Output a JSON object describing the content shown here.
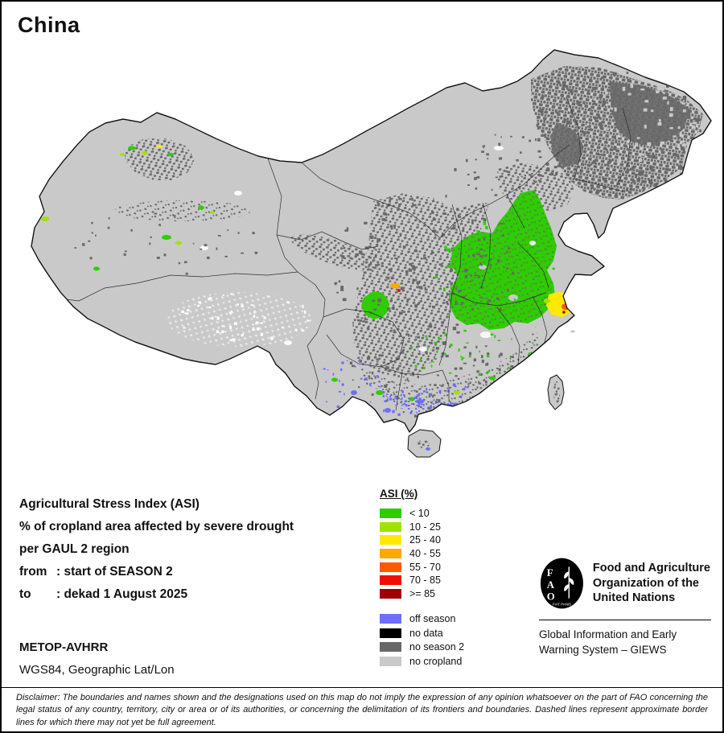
{
  "page": {
    "title": "China"
  },
  "info": {
    "heading": "Agricultural Stress Index (ASI)",
    "subtitle1": "% of cropland area affected by severe drought",
    "subtitle2": "per GAUL 2 region",
    "from_label": "from",
    "from_value": ": start of SEASON 2",
    "to_label": "to",
    "to_value": ": dekad 1 August 2025",
    "sensor": "METOP-AVHRR",
    "projection": "WGS84, Geographic Lat/Lon"
  },
  "legend": {
    "title": "ASI (%)",
    "asi_classes": [
      {
        "label": "< 10",
        "color": "#2fcc00"
      },
      {
        "label": "10 - 25",
        "color": "#a0e300"
      },
      {
        "label": "25 - 40",
        "color": "#ffe900"
      },
      {
        "label": "40 - 55",
        "color": "#ffa800"
      },
      {
        "label": "55 - 70",
        "color": "#ff5a00"
      },
      {
        "label": "70 - 85",
        "color": "#f01000"
      },
      {
        "label": ">= 85",
        "color": "#9e0000"
      }
    ],
    "other_classes": [
      {
        "label": "off season",
        "color": "#6e6eff"
      },
      {
        "label": "no data",
        "color": "#000000"
      },
      {
        "label": "no season 2",
        "color": "#686868"
      },
      {
        "label": "no cropland",
        "color": "#c9c9c9"
      }
    ]
  },
  "fao": {
    "logo_letters": [
      "F",
      "A",
      "O"
    ],
    "logo_motto": "FIAT PANIS",
    "org_name": "Food and Agriculture Organization of the United Nations",
    "giews": "Global Information and Early Warning System – GIEWS"
  },
  "disclaimer": "Disclaimer: The boundaries and names shown and the designations used on this map do not imply the expression of any opinion whatsoever on the part of FAO concerning the legal status of any country, territory, city or area or of its authorities, or concerning the delimitation of its frontiers and boundaries. Dashed lines represent approximate border lines for which there may not yet be full agreement."
}
